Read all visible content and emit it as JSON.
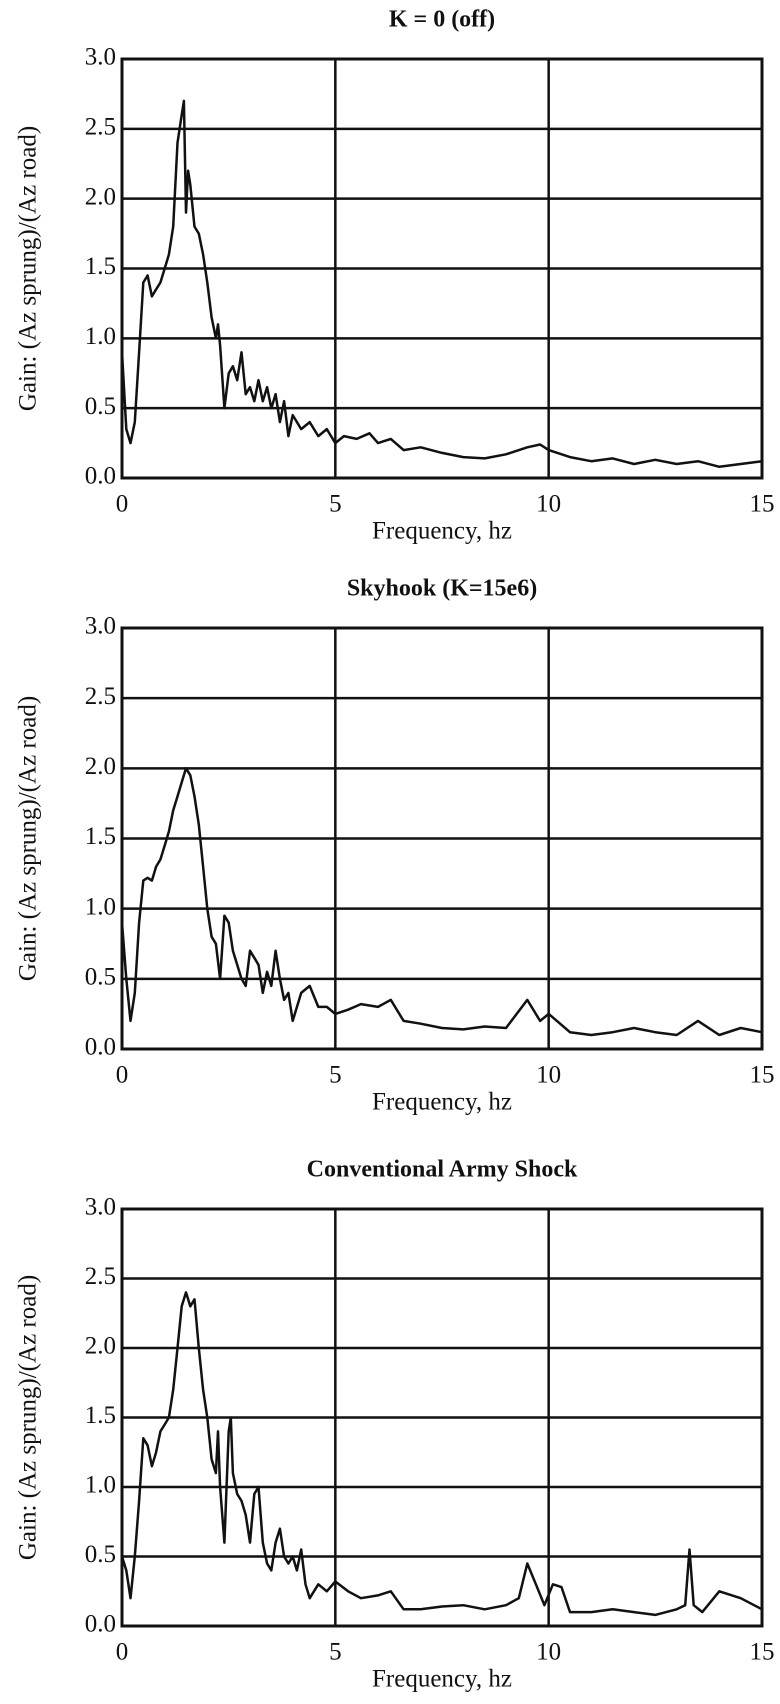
{
  "chart_data": [
    {
      "type": "line",
      "title": "K = 0 (off)",
      "xlabel": "Frequency, hz",
      "ylabel": "Gain: (Az sprung)/(Az road)",
      "color": "#111111",
      "grid": true,
      "xlim": [
        0,
        15
      ],
      "xticks": [
        0,
        5,
        10,
        15
      ],
      "ylim": [
        0,
        3
      ],
      "yticks": [
        {
          "value": 0,
          "label": "0.0"
        },
        0.5,
        {
          "value": 1,
          "label": "1.0"
        },
        1.5,
        {
          "value": 2,
          "label": "2.0"
        },
        2.5,
        {
          "value": 3,
          "label": "3.0"
        }
      ],
      "x": [
        0,
        0.1,
        0.2,
        0.3,
        0.4,
        0.5,
        0.6,
        0.7,
        0.8,
        0.9,
        1.0,
        1.1,
        1.2,
        1.3,
        1.4,
        1.45,
        1.5,
        1.55,
        1.6,
        1.7,
        1.8,
        1.9,
        2.0,
        2.1,
        2.2,
        2.25,
        2.3,
        2.4,
        2.5,
        2.6,
        2.7,
        2.8,
        2.9,
        3.0,
        3.1,
        3.2,
        3.3,
        3.4,
        3.5,
        3.6,
        3.7,
        3.8,
        3.9,
        4.0,
        4.2,
        4.4,
        4.6,
        4.8,
        5.0,
        5.2,
        5.5,
        5.8,
        6.0,
        6.3,
        6.6,
        7.0,
        7.5,
        8.0,
        8.5,
        9.0,
        9.5,
        9.8,
        10.0,
        10.5,
        11.0,
        11.5,
        12.0,
        12.5,
        13.0,
        13.5,
        14.0,
        14.5,
        15.0
      ],
      "values": [
        0.9,
        0.35,
        0.25,
        0.4,
        0.9,
        1.4,
        1.45,
        1.3,
        1.35,
        1.4,
        1.5,
        1.6,
        1.8,
        2.4,
        2.6,
        2.7,
        1.9,
        2.2,
        2.1,
        1.8,
        1.75,
        1.6,
        1.4,
        1.15,
        1.0,
        1.1,
        0.95,
        0.5,
        0.75,
        0.8,
        0.7,
        0.9,
        0.6,
        0.65,
        0.55,
        0.7,
        0.55,
        0.65,
        0.5,
        0.6,
        0.4,
        0.55,
        0.3,
        0.45,
        0.35,
        0.4,
        0.3,
        0.35,
        0.25,
        0.3,
        0.28,
        0.32,
        0.25,
        0.28,
        0.2,
        0.22,
        0.18,
        0.15,
        0.14,
        0.17,
        0.22,
        0.24,
        0.2,
        0.15,
        0.12,
        0.14,
        0.1,
        0.13,
        0.1,
        0.12,
        0.08,
        0.1,
        0.12
      ]
    },
    {
      "type": "line",
      "title": "Skyhook (K=15e6)",
      "xlabel": "Frequency, hz",
      "ylabel": "Gain: (Az sprung)/(Az road)",
      "color": "#111111",
      "grid": true,
      "xlim": [
        0,
        15
      ],
      "xticks": [
        0,
        5,
        10,
        15
      ],
      "ylim": [
        0,
        3
      ],
      "yticks": [
        {
          "value": 0,
          "label": "0.0"
        },
        0.5,
        {
          "value": 1,
          "label": "1.0"
        },
        1.5,
        {
          "value": 2,
          "label": "2.0"
        },
        2.5,
        {
          "value": 3,
          "label": "3.0"
        }
      ],
      "x": [
        0,
        0.1,
        0.2,
        0.3,
        0.4,
        0.5,
        0.6,
        0.7,
        0.8,
        0.9,
        1.0,
        1.1,
        1.2,
        1.3,
        1.4,
        1.5,
        1.6,
        1.7,
        1.8,
        1.9,
        2.0,
        2.1,
        2.2,
        2.3,
        2.4,
        2.5,
        2.6,
        2.7,
        2.8,
        2.9,
        3.0,
        3.1,
        3.2,
        3.3,
        3.4,
        3.5,
        3.6,
        3.7,
        3.8,
        3.9,
        4.0,
        4.2,
        4.4,
        4.6,
        4.8,
        5.0,
        5.3,
        5.6,
        6.0,
        6.3,
        6.6,
        7.0,
        7.5,
        8.0,
        8.5,
        9.0,
        9.5,
        9.8,
        10.0,
        10.5,
        11.0,
        11.5,
        12.0,
        12.5,
        13.0,
        13.5,
        14.0,
        14.5,
        15.0
      ],
      "values": [
        0.9,
        0.5,
        0.2,
        0.4,
        0.9,
        1.2,
        1.22,
        1.2,
        1.3,
        1.35,
        1.45,
        1.55,
        1.7,
        1.8,
        1.9,
        2.0,
        1.95,
        1.8,
        1.6,
        1.3,
        1.0,
        0.8,
        0.75,
        0.5,
        0.95,
        0.9,
        0.7,
        0.6,
        0.5,
        0.45,
        0.7,
        0.65,
        0.6,
        0.4,
        0.55,
        0.45,
        0.7,
        0.5,
        0.35,
        0.4,
        0.2,
        0.4,
        0.45,
        0.3,
        0.3,
        0.25,
        0.28,
        0.32,
        0.3,
        0.35,
        0.2,
        0.18,
        0.15,
        0.14,
        0.16,
        0.15,
        0.35,
        0.2,
        0.25,
        0.12,
        0.1,
        0.12,
        0.15,
        0.12,
        0.1,
        0.2,
        0.1,
        0.15,
        0.12
      ]
    },
    {
      "type": "line",
      "title": "Conventional Army Shock",
      "xlabel": "Frequency, hz",
      "ylabel": "Gain: (Az sprung)/(Az road)",
      "color": "#111111",
      "grid": true,
      "xlim": [
        0,
        15
      ],
      "xticks": [
        0,
        5,
        10,
        15
      ],
      "ylim": [
        0,
        3
      ],
      "yticks": [
        {
          "value": 0,
          "label": "0.0"
        },
        0.5,
        {
          "value": 1,
          "label": "1.0"
        },
        1.5,
        {
          "value": 2,
          "label": "2.0"
        },
        2.5,
        {
          "value": 3,
          "label": "3.0"
        }
      ],
      "x": [
        0,
        0.1,
        0.2,
        0.3,
        0.4,
        0.5,
        0.6,
        0.7,
        0.8,
        0.9,
        1.0,
        1.1,
        1.2,
        1.3,
        1.4,
        1.5,
        1.6,
        1.7,
        1.8,
        1.9,
        2.0,
        2.1,
        2.2,
        2.25,
        2.3,
        2.4,
        2.5,
        2.55,
        2.6,
        2.7,
        2.8,
        2.9,
        3.0,
        3.1,
        3.2,
        3.3,
        3.4,
        3.5,
        3.6,
        3.7,
        3.8,
        3.9,
        4.0,
        4.1,
        4.2,
        4.3,
        4.4,
        4.6,
        4.8,
        5.0,
        5.3,
        5.6,
        6.0,
        6.3,
        6.6,
        7.0,
        7.5,
        8.0,
        8.5,
        9.0,
        9.3,
        9.5,
        9.7,
        9.9,
        10.1,
        10.3,
        10.5,
        11.0,
        11.5,
        12.0,
        12.5,
        13.0,
        13.2,
        13.3,
        13.4,
        13.6,
        14.0,
        14.5,
        15.0
      ],
      "values": [
        0.5,
        0.4,
        0.2,
        0.5,
        0.9,
        1.35,
        1.3,
        1.15,
        1.25,
        1.4,
        1.45,
        1.5,
        1.7,
        2.0,
        2.3,
        2.4,
        2.3,
        2.35,
        2.0,
        1.7,
        1.5,
        1.2,
        1.1,
        1.4,
        1.0,
        0.6,
        1.4,
        1.5,
        1.1,
        0.95,
        0.9,
        0.8,
        0.6,
        0.95,
        1.0,
        0.6,
        0.45,
        0.4,
        0.6,
        0.7,
        0.5,
        0.45,
        0.5,
        0.4,
        0.55,
        0.3,
        0.2,
        0.3,
        0.25,
        0.32,
        0.25,
        0.2,
        0.22,
        0.25,
        0.12,
        0.12,
        0.14,
        0.15,
        0.12,
        0.15,
        0.2,
        0.45,
        0.3,
        0.15,
        0.3,
        0.28,
        0.1,
        0.1,
        0.12,
        0.1,
        0.08,
        0.12,
        0.15,
        0.55,
        0.15,
        0.1,
        0.25,
        0.2,
        0.12
      ]
    }
  ]
}
